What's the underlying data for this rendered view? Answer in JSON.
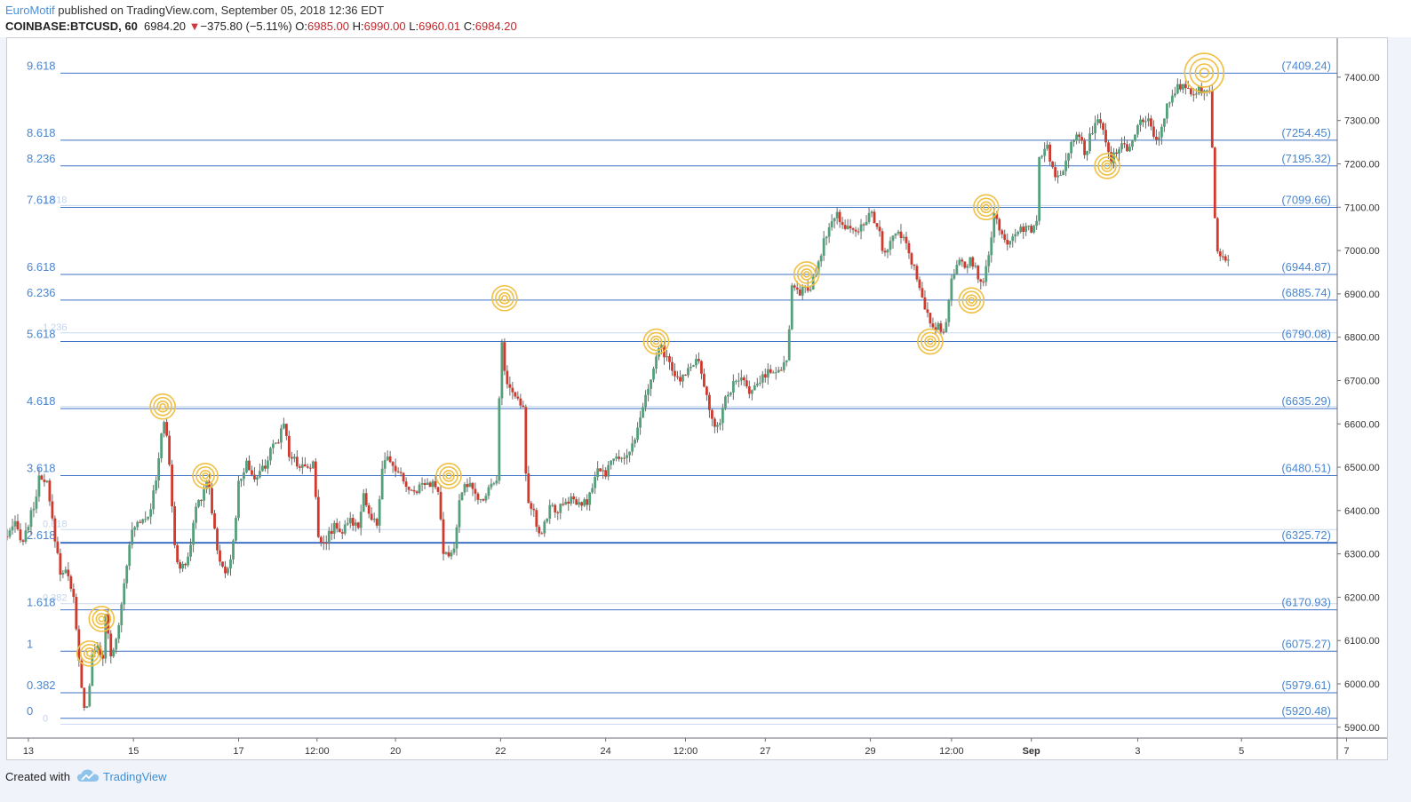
{
  "header": {
    "author": "EuroMotif",
    "published": " published on TradingView.com, September 05, 2018 12:36 EDT",
    "symbol": "COINBASE:BTCUSD, 60",
    "last": "6984.20",
    "change": "−375.80 (−5.11%)",
    "o_label": "O:",
    "o_value": "6985.00",
    "h_label": "H:",
    "h_value": "6990.00",
    "l_label": "L:",
    "l_value": "6960.01",
    "c_label": "C:",
    "c_value": "6984.20"
  },
  "footer": {
    "created_with": "Created with",
    "brand": "TradingView"
  },
  "colors": {
    "up": "#53a07a",
    "down": "#d0392c",
    "fib": "#3f72c4",
    "fib_label": "#4a86d0",
    "circle": "#f0c044",
    "grid": "#e3e6ec"
  },
  "chart_data": {
    "type": "candlestick",
    "title": "",
    "ylim": [
      5875,
      7490
    ],
    "y_ticks": [
      5900,
      6000,
      6100,
      6200,
      6300,
      6400,
      6500,
      6600,
      6700,
      6800,
      6900,
      7000,
      7100,
      7200,
      7300,
      7400
    ],
    "y_tick_labels": [
      "5900.00",
      "6000.00",
      "6100.00",
      "6200.00",
      "6300.00",
      "6400.00",
      "6500.00",
      "6600.00",
      "6700.00",
      "6800.00",
      "6900.00",
      "7000.00",
      "7100.00",
      "7200.00",
      "7300.00",
      "7400.00"
    ],
    "x_ticks": [
      "13",
      "15",
      "17",
      "12:00",
      "20",
      "22",
      "24",
      "12:00",
      "27",
      "29",
      "12:00",
      "Sep",
      "3",
      "5",
      "7"
    ],
    "x_tick_pos": [
      0.016,
      0.095,
      0.174,
      0.233,
      0.292,
      0.371,
      0.45,
      0.51,
      0.57,
      0.649,
      0.71,
      0.77,
      0.85,
      0.928,
      1.007
    ],
    "price_series": [
      [
        0.0,
        6340
      ],
      [
        0.006,
        6365
      ],
      [
        0.012,
        6330
      ],
      [
        0.02,
        6410
      ],
      [
        0.024,
        6470
      ],
      [
        0.03,
        6460
      ],
      [
        0.034,
        6375
      ],
      [
        0.04,
        6260
      ],
      [
        0.046,
        6255
      ],
      [
        0.05,
        6195
      ],
      [
        0.054,
        6050
      ],
      [
        0.057,
        5955
      ],
      [
        0.06,
        5945
      ],
      [
        0.064,
        6060
      ],
      [
        0.068,
        6095
      ],
      [
        0.072,
        6050
      ],
      [
        0.074,
        6155
      ],
      [
        0.078,
        6060
      ],
      [
        0.082,
        6100
      ],
      [
        0.087,
        6210
      ],
      [
        0.092,
        6330
      ],
      [
        0.097,
        6370
      ],
      [
        0.102,
        6385
      ],
      [
        0.107,
        6395
      ],
      [
        0.112,
        6465
      ],
      [
        0.117,
        6610
      ],
      [
        0.121,
        6560
      ],
      [
        0.126,
        6310
      ],
      [
        0.131,
        6260
      ],
      [
        0.137,
        6300
      ],
      [
        0.142,
        6410
      ],
      [
        0.147,
        6440
      ],
      [
        0.151,
        6480
      ],
      [
        0.155,
        6375
      ],
      [
        0.16,
        6275
      ],
      [
        0.165,
        6260
      ],
      [
        0.17,
        6320
      ],
      [
        0.174,
        6460
      ],
      [
        0.18,
        6510
      ],
      [
        0.187,
        6470
      ],
      [
        0.193,
        6500
      ],
      [
        0.199,
        6540
      ],
      [
        0.204,
        6560
      ],
      [
        0.208,
        6610
      ],
      [
        0.212,
        6530
      ],
      [
        0.218,
        6510
      ],
      [
        0.224,
        6500
      ],
      [
        0.23,
        6510
      ],
      [
        0.234,
        6340
      ],
      [
        0.24,
        6330
      ],
      [
        0.246,
        6370
      ],
      [
        0.252,
        6350
      ],
      [
        0.258,
        6375
      ],
      [
        0.264,
        6370
      ],
      [
        0.268,
        6440
      ],
      [
        0.273,
        6380
      ],
      [
        0.278,
        6370
      ],
      [
        0.283,
        6520
      ],
      [
        0.288,
        6510
      ],
      [
        0.293,
        6490
      ],
      [
        0.298,
        6470
      ],
      [
        0.303,
        6440
      ],
      [
        0.308,
        6450
      ],
      [
        0.314,
        6470
      ],
      [
        0.32,
        6460
      ],
      [
        0.325,
        6440
      ],
      [
        0.327,
        6300
      ],
      [
        0.332,
        6295
      ],
      [
        0.336,
        6310
      ],
      [
        0.339,
        6400
      ],
      [
        0.344,
        6470
      ],
      [
        0.349,
        6450
      ],
      [
        0.355,
        6420
      ],
      [
        0.36,
        6440
      ],
      [
        0.365,
        6470
      ],
      [
        0.369,
        6480
      ],
      [
        0.371,
        6840
      ],
      [
        0.373,
        6730
      ],
      [
        0.378,
        6680
      ],
      [
        0.383,
        6660
      ],
      [
        0.388,
        6645
      ],
      [
        0.391,
        6420
      ],
      [
        0.396,
        6400
      ],
      [
        0.399,
        6330
      ],
      [
        0.403,
        6360
      ],
      [
        0.408,
        6410
      ],
      [
        0.413,
        6400
      ],
      [
        0.419,
        6410
      ],
      [
        0.424,
        6430
      ],
      [
        0.43,
        6410
      ],
      [
        0.436,
        6420
      ],
      [
        0.441,
        6460
      ],
      [
        0.445,
        6500
      ],
      [
        0.449,
        6480
      ],
      [
        0.453,
        6510
      ],
      [
        0.459,
        6520
      ],
      [
        0.466,
        6530
      ],
      [
        0.472,
        6555
      ],
      [
        0.478,
        6640
      ],
      [
        0.483,
        6690
      ],
      [
        0.488,
        6750
      ],
      [
        0.492,
        6780
      ],
      [
        0.497,
        6740
      ],
      [
        0.501,
        6710
      ],
      [
        0.506,
        6700
      ],
      [
        0.512,
        6730
      ],
      [
        0.518,
        6750
      ],
      [
        0.523,
        6710
      ],
      [
        0.527,
        6640
      ],
      [
        0.531,
        6595
      ],
      [
        0.536,
        6610
      ],
      [
        0.54,
        6660
      ],
      [
        0.546,
        6690
      ],
      [
        0.552,
        6700
      ],
      [
        0.557,
        6680
      ],
      [
        0.563,
        6680
      ],
      [
        0.568,
        6710
      ],
      [
        0.573,
        6725
      ],
      [
        0.578,
        6720
      ],
      [
        0.582,
        6730
      ],
      [
        0.587,
        6760
      ],
      [
        0.59,
        6930
      ],
      [
        0.594,
        6900
      ],
      [
        0.598,
        6910
      ],
      [
        0.604,
        6920
      ],
      [
        0.609,
        6950
      ],
      [
        0.614,
        7020
      ],
      [
        0.619,
        7060
      ],
      [
        0.624,
        7080
      ],
      [
        0.629,
        7060
      ],
      [
        0.634,
        7050
      ],
      [
        0.64,
        7040
      ],
      [
        0.645,
        7075
      ],
      [
        0.65,
        7080
      ],
      [
        0.655,
        7060
      ],
      [
        0.658,
        6990
      ],
      [
        0.663,
        7010
      ],
      [
        0.668,
        7040
      ],
      [
        0.673,
        7030
      ],
      [
        0.678,
        6990
      ],
      [
        0.682,
        6960
      ],
      [
        0.686,
        6910
      ],
      [
        0.69,
        6860
      ],
      [
        0.694,
        6840
      ],
      [
        0.697,
        6825
      ],
      [
        0.701,
        6820
      ],
      [
        0.705,
        6800
      ],
      [
        0.707,
        6880
      ],
      [
        0.711,
        6940
      ],
      [
        0.716,
        6970
      ],
      [
        0.721,
        6960
      ],
      [
        0.725,
        6980
      ],
      [
        0.729,
        6950
      ],
      [
        0.733,
        6920
      ],
      [
        0.738,
        6980
      ],
      [
        0.742,
        7090
      ],
      [
        0.746,
        7040
      ],
      [
        0.751,
        7020
      ],
      [
        0.757,
        7040
      ],
      [
        0.763,
        7055
      ],
      [
        0.769,
        7045
      ],
      [
        0.774,
        7060
      ],
      [
        0.776,
        7210
      ],
      [
        0.781,
        7250
      ],
      [
        0.786,
        7190
      ],
      [
        0.79,
        7165
      ],
      [
        0.795,
        7200
      ],
      [
        0.8,
        7250
      ],
      [
        0.805,
        7285
      ],
      [
        0.81,
        7220
      ],
      [
        0.816,
        7280
      ],
      [
        0.821,
        7300
      ],
      [
        0.826,
        7260
      ],
      [
        0.83,
        7210
      ],
      [
        0.834,
        7230
      ],
      [
        0.839,
        7260
      ],
      [
        0.843,
        7230
      ],
      [
        0.848,
        7275
      ],
      [
        0.853,
        7300
      ],
      [
        0.858,
        7300
      ],
      [
        0.863,
        7250
      ],
      [
        0.867,
        7270
      ],
      [
        0.871,
        7320
      ],
      [
        0.875,
        7360
      ],
      [
        0.88,
        7380
      ],
      [
        0.886,
        7375
      ],
      [
        0.891,
        7370
      ],
      [
        0.897,
        7370
      ],
      [
        0.902,
        7365
      ],
      [
        0.905,
        7365
      ],
      [
        0.907,
        7110
      ],
      [
        0.91,
        7000
      ],
      [
        0.914,
        6990
      ],
      [
        0.918,
        6975
      ]
    ],
    "fib_levels": [
      {
        "ratio": "9.618",
        "value": 7409.24,
        "label": "(7409.24)"
      },
      {
        "ratio": "8.618",
        "value": 7254.45,
        "label": "(7254.45)"
      },
      {
        "ratio": "8.236",
        "value": 7195.32,
        "label": "(7195.32)"
      },
      {
        "ratio": "7.618",
        "value": 7099.66,
        "label": "(7099.66)"
      },
      {
        "ratio": "6.618",
        "value": 6944.87,
        "label": "(6944.87)"
      },
      {
        "ratio": "6.236",
        "value": 6885.74,
        "label": "(6885.74)"
      },
      {
        "ratio": "5.618",
        "value": 6790.08,
        "label": "(6790.08)"
      },
      {
        "ratio": "4.618",
        "value": 6635.29,
        "label": "(6635.29)"
      },
      {
        "ratio": "3.618",
        "value": 6480.51,
        "label": "(6480.51)"
      },
      {
        "ratio": "2.618",
        "value": 6325.72,
        "label": "(6325.72)"
      },
      {
        "ratio": "1.618",
        "value": 6170.93,
        "label": "(6170.93)"
      },
      {
        "ratio": "1",
        "value": 6075.27,
        "label": "(6075.27)"
      },
      {
        "ratio": "0.382",
        "value": 5979.61,
        "label": "(5979.61)"
      },
      {
        "ratio": "0",
        "value": 5920.48,
        "label": "(5920.48)"
      }
    ],
    "faint_levels": [
      {
        "ratio": "1.618",
        "value": 7104
      },
      {
        "ratio": "1.236",
        "value": 6810
      },
      {
        "ratio": "1",
        "value": 6640
      },
      {
        "ratio": "0.618",
        "value": 6356
      },
      {
        "ratio": "0.382",
        "value": 6185
      },
      {
        "ratio": "0",
        "value": 5907
      }
    ],
    "highlight_circles": [
      [
        0.062,
        6070
      ],
      [
        0.071,
        6150
      ],
      [
        0.117,
        6640
      ],
      [
        0.149,
        6480
      ],
      [
        0.332,
        6480
      ],
      [
        0.374,
        6890
      ],
      [
        0.488,
        6790
      ],
      [
        0.601,
        6945
      ],
      [
        0.694,
        6790
      ],
      [
        0.725,
        6885
      ],
      [
        0.736,
        7100
      ],
      [
        0.827,
        7195
      ],
      [
        0.9,
        7410
      ]
    ]
  }
}
